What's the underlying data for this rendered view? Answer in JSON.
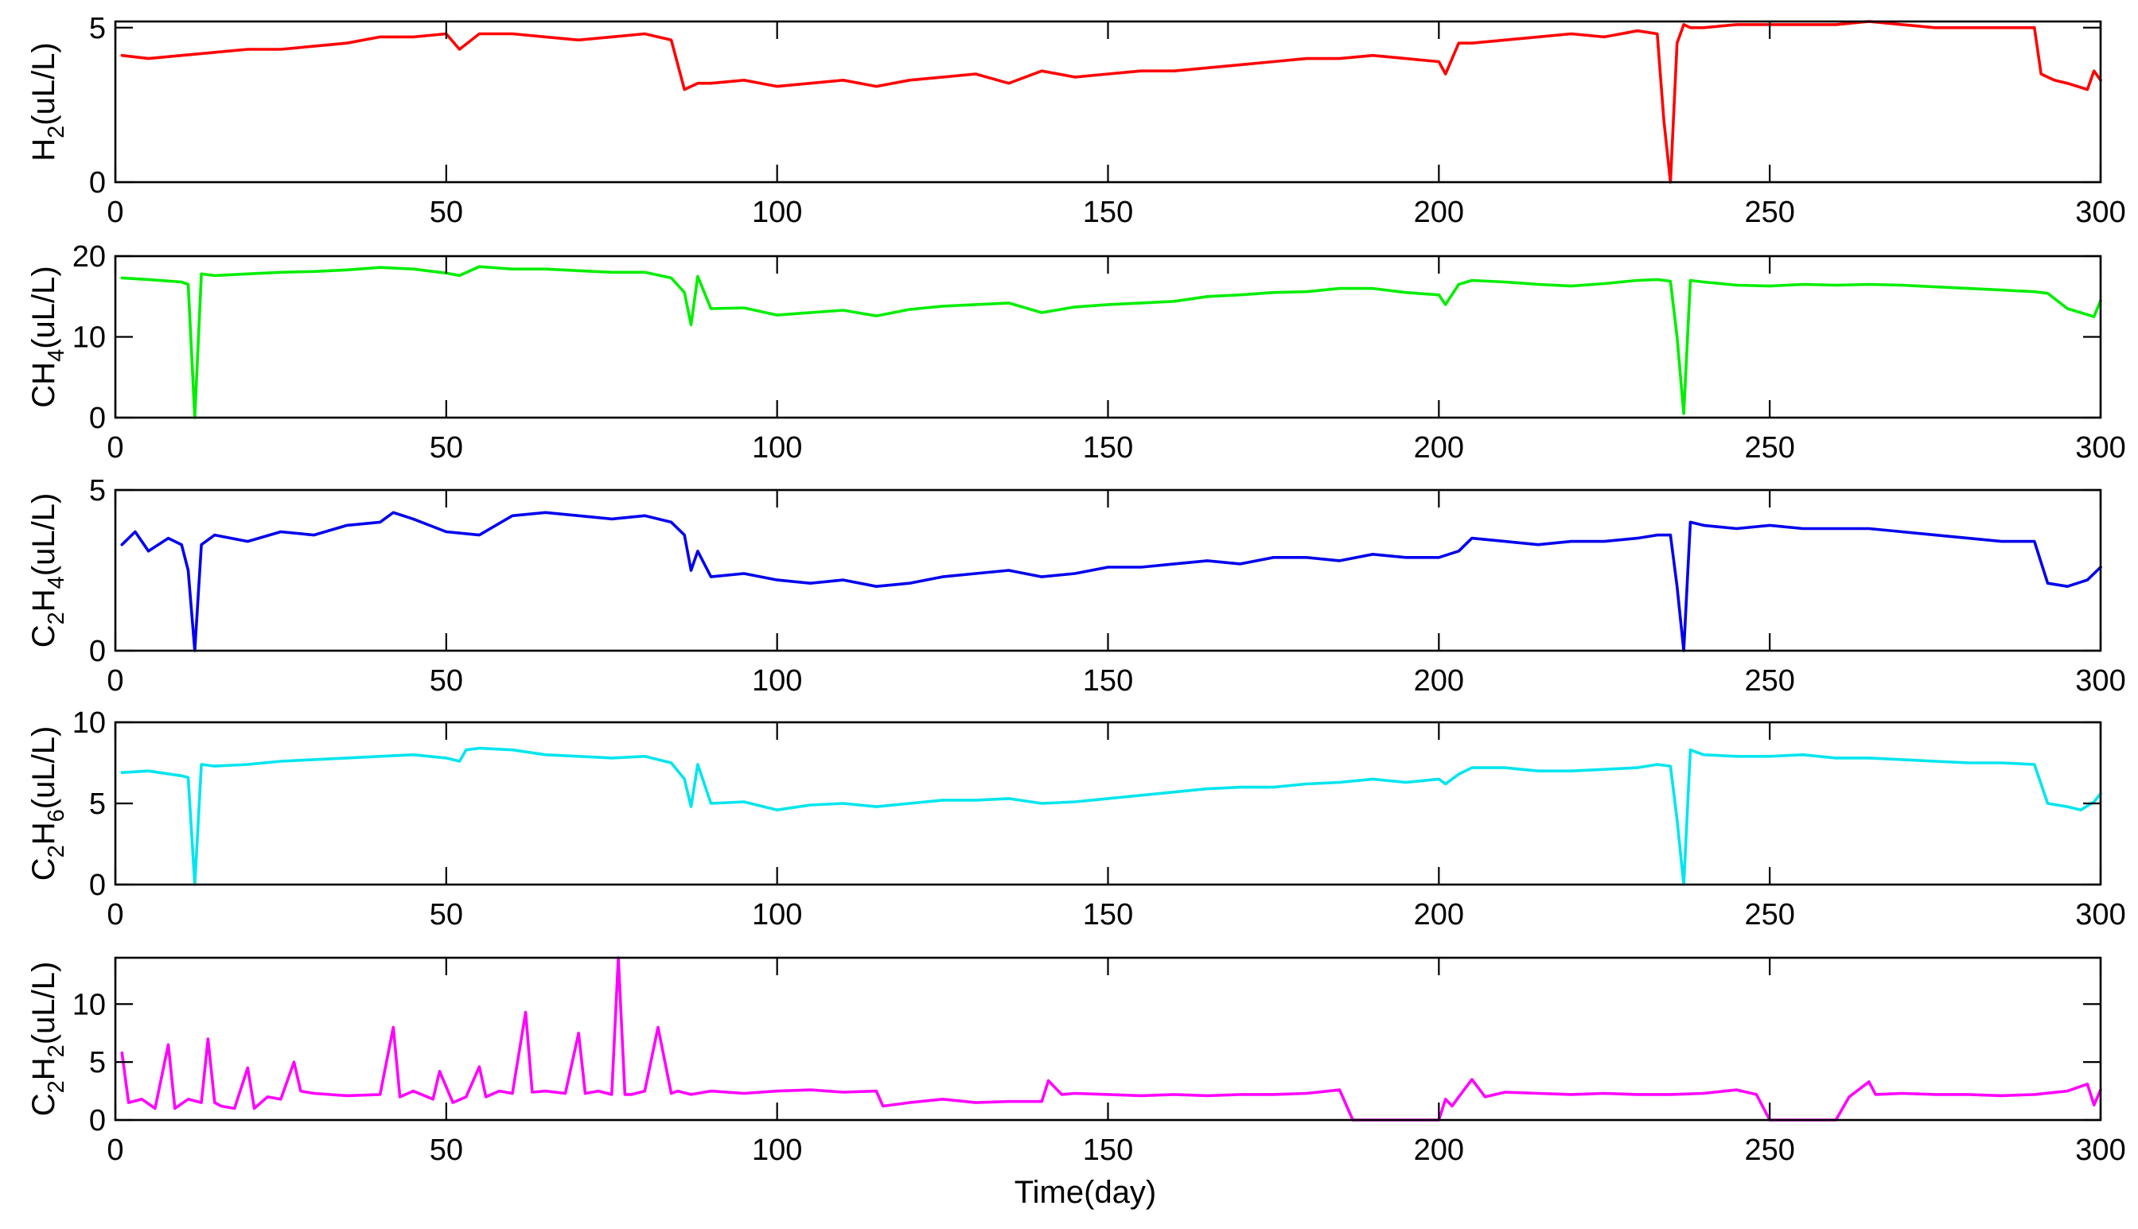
{
  "chart_data": [
    {
      "type": "line",
      "ylabel": {
        "prefix": "H",
        "sub": "2",
        "suffix": "(uL/L)"
      },
      "color": "#ff0000",
      "xlim": [
        0,
        300
      ],
      "ylim": [
        0,
        5.2
      ],
      "yticks": [
        0,
        5
      ],
      "xticks": [
        0,
        50,
        100,
        150,
        200,
        250,
        300
      ],
      "series": [
        {
          "name": "H2",
          "x": [
            1,
            5,
            10,
            15,
            20,
            25,
            30,
            35,
            40,
            45,
            50,
            52,
            55,
            60,
            65,
            70,
            75,
            80,
            84,
            86,
            88,
            90,
            95,
            100,
            105,
            110,
            115,
            120,
            125,
            130,
            135,
            140,
            145,
            150,
            155,
            160,
            165,
            170,
            175,
            180,
            185,
            190,
            195,
            200,
            201,
            203,
            205,
            210,
            215,
            220,
            225,
            230,
            233,
            234,
            235,
            236,
            237,
            238,
            240,
            245,
            250,
            255,
            260,
            265,
            270,
            275,
            280,
            285,
            290,
            291,
            293,
            295,
            298,
            299,
            300
          ],
          "values": [
            4.1,
            4.0,
            4.1,
            4.2,
            4.3,
            4.3,
            4.4,
            4.5,
            4.7,
            4.7,
            4.8,
            4.3,
            4.8,
            4.8,
            4.7,
            4.6,
            4.7,
            4.8,
            4.6,
            3.0,
            3.2,
            3.2,
            3.3,
            3.1,
            3.2,
            3.3,
            3.1,
            3.3,
            3.4,
            3.5,
            3.2,
            3.6,
            3.4,
            3.5,
            3.6,
            3.6,
            3.7,
            3.8,
            3.9,
            4.0,
            4.0,
            4.1,
            4.0,
            3.9,
            3.5,
            4.5,
            4.5,
            4.6,
            4.7,
            4.8,
            4.7,
            4.9,
            4.8,
            2.0,
            0,
            4.5,
            5.1,
            5.0,
            5.0,
            5.1,
            5.1,
            5.1,
            5.1,
            5.2,
            5.1,
            5.0,
            5.0,
            5.0,
            5.0,
            3.5,
            3.3,
            3.2,
            3.0,
            3.6,
            3.3
          ]
        }
      ]
    },
    {
      "type": "line",
      "ylabel": {
        "prefix": "CH",
        "sub": "4",
        "suffix": "(uL/L)"
      },
      "color": "#00ee00",
      "xlim": [
        0,
        300
      ],
      "ylim": [
        0,
        20
      ],
      "yticks": [
        0,
        10,
        20
      ],
      "xticks": [
        0,
        50,
        100,
        150,
        200,
        250,
        300
      ],
      "series": [
        {
          "name": "CH4",
          "x": [
            1,
            5,
            10,
            11,
            12,
            13,
            15,
            20,
            25,
            30,
            35,
            40,
            45,
            50,
            52,
            55,
            60,
            65,
            70,
            75,
            80,
            84,
            86,
            87,
            88,
            90,
            95,
            100,
            105,
            110,
            115,
            120,
            125,
            130,
            135,
            140,
            145,
            150,
            155,
            160,
            165,
            170,
            175,
            180,
            185,
            190,
            195,
            200,
            201,
            203,
            205,
            210,
            215,
            220,
            225,
            230,
            233,
            235,
            236,
            237,
            238,
            240,
            245,
            250,
            255,
            260,
            265,
            270,
            275,
            280,
            285,
            290,
            292,
            295,
            297,
            299,
            300
          ],
          "values": [
            17.3,
            17.1,
            16.8,
            16.5,
            0,
            17.8,
            17.6,
            17.8,
            18.0,
            18.1,
            18.3,
            18.6,
            18.4,
            17.9,
            17.6,
            18.7,
            18.4,
            18.4,
            18.2,
            18.0,
            18.0,
            17.3,
            15.5,
            11.5,
            17.5,
            13.5,
            13.6,
            12.7,
            13.0,
            13.3,
            12.6,
            13.4,
            13.8,
            14.0,
            14.2,
            13.0,
            13.7,
            14.0,
            14.2,
            14.4,
            15.0,
            15.2,
            15.5,
            15.6,
            16.0,
            16.0,
            15.5,
            15.2,
            14.0,
            16.5,
            17.0,
            16.8,
            16.5,
            16.3,
            16.6,
            17.0,
            17.1,
            16.9,
            10.0,
            0.5,
            17.0,
            16.8,
            16.4,
            16.3,
            16.5,
            16.4,
            16.5,
            16.4,
            16.2,
            16.0,
            15.8,
            15.6,
            15.4,
            13.5,
            13.0,
            12.5,
            14.5
          ]
        }
      ]
    },
    {
      "type": "line",
      "ylabel": {
        "prefix": "C",
        "sub": "2",
        "mid": "H",
        "sub2": "4",
        "suffix": "(uL/L)"
      },
      "color": "#0000ee",
      "xlim": [
        0,
        300
      ],
      "ylim": [
        0,
        5
      ],
      "yticks": [
        0,
        5
      ],
      "xticks": [
        0,
        50,
        100,
        150,
        200,
        250,
        300
      ],
      "series": [
        {
          "name": "C2H4",
          "x": [
            1,
            3,
            5,
            8,
            10,
            11,
            12,
            13,
            15,
            20,
            25,
            30,
            35,
            40,
            42,
            45,
            50,
            55,
            60,
            65,
            70,
            75,
            80,
            84,
            86,
            87,
            88,
            90,
            95,
            100,
            105,
            110,
            115,
            120,
            125,
            130,
            135,
            140,
            145,
            150,
            155,
            160,
            165,
            170,
            175,
            180,
            185,
            190,
            195,
            200,
            203,
            205,
            210,
            215,
            220,
            225,
            230,
            233,
            235,
            236,
            237,
            238,
            240,
            245,
            250,
            255,
            260,
            265,
            270,
            275,
            280,
            285,
            290,
            292,
            295,
            298,
            300
          ],
          "values": [
            3.3,
            3.7,
            3.1,
            3.5,
            3.3,
            2.5,
            0,
            3.3,
            3.6,
            3.4,
            3.7,
            3.6,
            3.9,
            4.0,
            4.3,
            4.1,
            3.7,
            3.6,
            4.2,
            4.3,
            4.2,
            4.1,
            4.2,
            4.0,
            3.6,
            2.5,
            3.1,
            2.3,
            2.4,
            2.2,
            2.1,
            2.2,
            2.0,
            2.1,
            2.3,
            2.4,
            2.5,
            2.3,
            2.4,
            2.6,
            2.6,
            2.7,
            2.8,
            2.7,
            2.9,
            2.9,
            2.8,
            3.0,
            2.9,
            2.9,
            3.1,
            3.5,
            3.4,
            3.3,
            3.4,
            3.4,
            3.5,
            3.6,
            3.6,
            2.0,
            0,
            4.0,
            3.9,
            3.8,
            3.9,
            3.8,
            3.8,
            3.8,
            3.7,
            3.6,
            3.5,
            3.4,
            3.4,
            2.1,
            2.0,
            2.2,
            2.6
          ]
        }
      ]
    },
    {
      "type": "line",
      "ylabel": {
        "prefix": "C",
        "sub": "2",
        "mid": "H",
        "sub2": "6",
        "suffix": "(uL/L)"
      },
      "color": "#00e5ee",
      "xlim": [
        0,
        300
      ],
      "ylim": [
        0,
        10
      ],
      "yticks": [
        0,
        5,
        10
      ],
      "xticks": [
        0,
        50,
        100,
        150,
        200,
        250,
        300
      ],
      "series": [
        {
          "name": "C2H6",
          "x": [
            1,
            5,
            10,
            11,
            12,
            13,
            15,
            20,
            25,
            30,
            35,
            40,
            45,
            50,
            52,
            53,
            55,
            60,
            65,
            70,
            75,
            80,
            84,
            86,
            87,
            88,
            90,
            95,
            100,
            105,
            110,
            115,
            120,
            125,
            130,
            135,
            140,
            145,
            150,
            155,
            160,
            165,
            170,
            175,
            180,
            185,
            190,
            195,
            200,
            201,
            203,
            205,
            210,
            215,
            220,
            225,
            230,
            233,
            235,
            236,
            237,
            238,
            240,
            245,
            250,
            255,
            260,
            265,
            270,
            275,
            280,
            285,
            290,
            292,
            295,
            297,
            299,
            300
          ],
          "values": [
            6.9,
            7.0,
            6.7,
            6.6,
            0,
            7.4,
            7.3,
            7.4,
            7.6,
            7.7,
            7.8,
            7.9,
            8.0,
            7.8,
            7.6,
            8.3,
            8.4,
            8.3,
            8.0,
            7.9,
            7.8,
            7.9,
            7.5,
            6.5,
            4.8,
            7.4,
            5.0,
            5.1,
            4.6,
            4.9,
            5.0,
            4.8,
            5.0,
            5.2,
            5.2,
            5.3,
            5.0,
            5.1,
            5.3,
            5.5,
            5.7,
            5.9,
            6.0,
            6.0,
            6.2,
            6.3,
            6.5,
            6.3,
            6.5,
            6.2,
            6.8,
            7.2,
            7.2,
            7.0,
            7.0,
            7.1,
            7.2,
            7.4,
            7.3,
            4.0,
            0,
            8.3,
            8.0,
            7.9,
            7.9,
            8.0,
            7.8,
            7.8,
            7.7,
            7.6,
            7.5,
            7.5,
            7.4,
            5.0,
            4.8,
            4.6,
            5.1,
            5.6
          ]
        }
      ]
    },
    {
      "type": "line",
      "ylabel": {
        "prefix": "C",
        "sub": "2",
        "mid": "H",
        "sub2": "2",
        "suffix": "(uL/L)"
      },
      "color": "#ff00ff",
      "xlim": [
        0,
        300
      ],
      "ylim": [
        0,
        14
      ],
      "yticks": [
        0,
        5,
        10
      ],
      "xticks": [
        0,
        50,
        100,
        150,
        200,
        250,
        300
      ],
      "xlabel": "Time(day)",
      "series": [
        {
          "name": "C2H2",
          "x": [
            1,
            2,
            4,
            6,
            8,
            9,
            11,
            13,
            14,
            15,
            16,
            18,
            20,
            21,
            23,
            25,
            27,
            28,
            30,
            35,
            40,
            42,
            43,
            45,
            48,
            49,
            51,
            53,
            55,
            56,
            58,
            60,
            62,
            63,
            65,
            68,
            70,
            71,
            73,
            75,
            76,
            77,
            78,
            80,
            82,
            84,
            85,
            87,
            90,
            95,
            100,
            105,
            110,
            115,
            116,
            120,
            125,
            130,
            135,
            140,
            141,
            143,
            145,
            150,
            155,
            160,
            165,
            170,
            175,
            180,
            185,
            187,
            190,
            195,
            200,
            201,
            202,
            203,
            205,
            207,
            210,
            215,
            220,
            225,
            230,
            235,
            240,
            245,
            248,
            250,
            255,
            260,
            262,
            265,
            266,
            270,
            275,
            280,
            285,
            290,
            295,
            298,
            299,
            300
          ],
          "values": [
            5.8,
            1.5,
            1.8,
            1.0,
            6.5,
            1.0,
            1.8,
            1.5,
            7.0,
            1.5,
            1.2,
            1.0,
            4.5,
            1.0,
            2.0,
            1.8,
            5.0,
            2.5,
            2.3,
            2.1,
            2.2,
            8.0,
            2.0,
            2.5,
            1.8,
            4.2,
            1.5,
            2.0,
            4.6,
            2.0,
            2.5,
            2.3,
            9.3,
            2.4,
            2.5,
            2.3,
            7.5,
            2.3,
            2.5,
            2.2,
            14.0,
            2.2,
            2.2,
            2.5,
            8.0,
            2.3,
            2.5,
            2.2,
            2.5,
            2.3,
            2.5,
            2.6,
            2.4,
            2.5,
            1.2,
            1.5,
            1.8,
            1.5,
            1.6,
            1.6,
            3.4,
            2.2,
            2.3,
            2.2,
            2.1,
            2.2,
            2.1,
            2.2,
            2.2,
            2.3,
            2.6,
            0,
            0,
            0,
            0,
            1.8,
            1.2,
            2.0,
            3.5,
            2.0,
            2.4,
            2.3,
            2.2,
            2.3,
            2.2,
            2.2,
            2.3,
            2.6,
            2.2,
            0,
            0,
            0,
            2.0,
            3.3,
            2.2,
            2.3,
            2.2,
            2.2,
            2.1,
            2.2,
            2.5,
            3.1,
            1.3,
            2.6
          ]
        }
      ]
    }
  ]
}
